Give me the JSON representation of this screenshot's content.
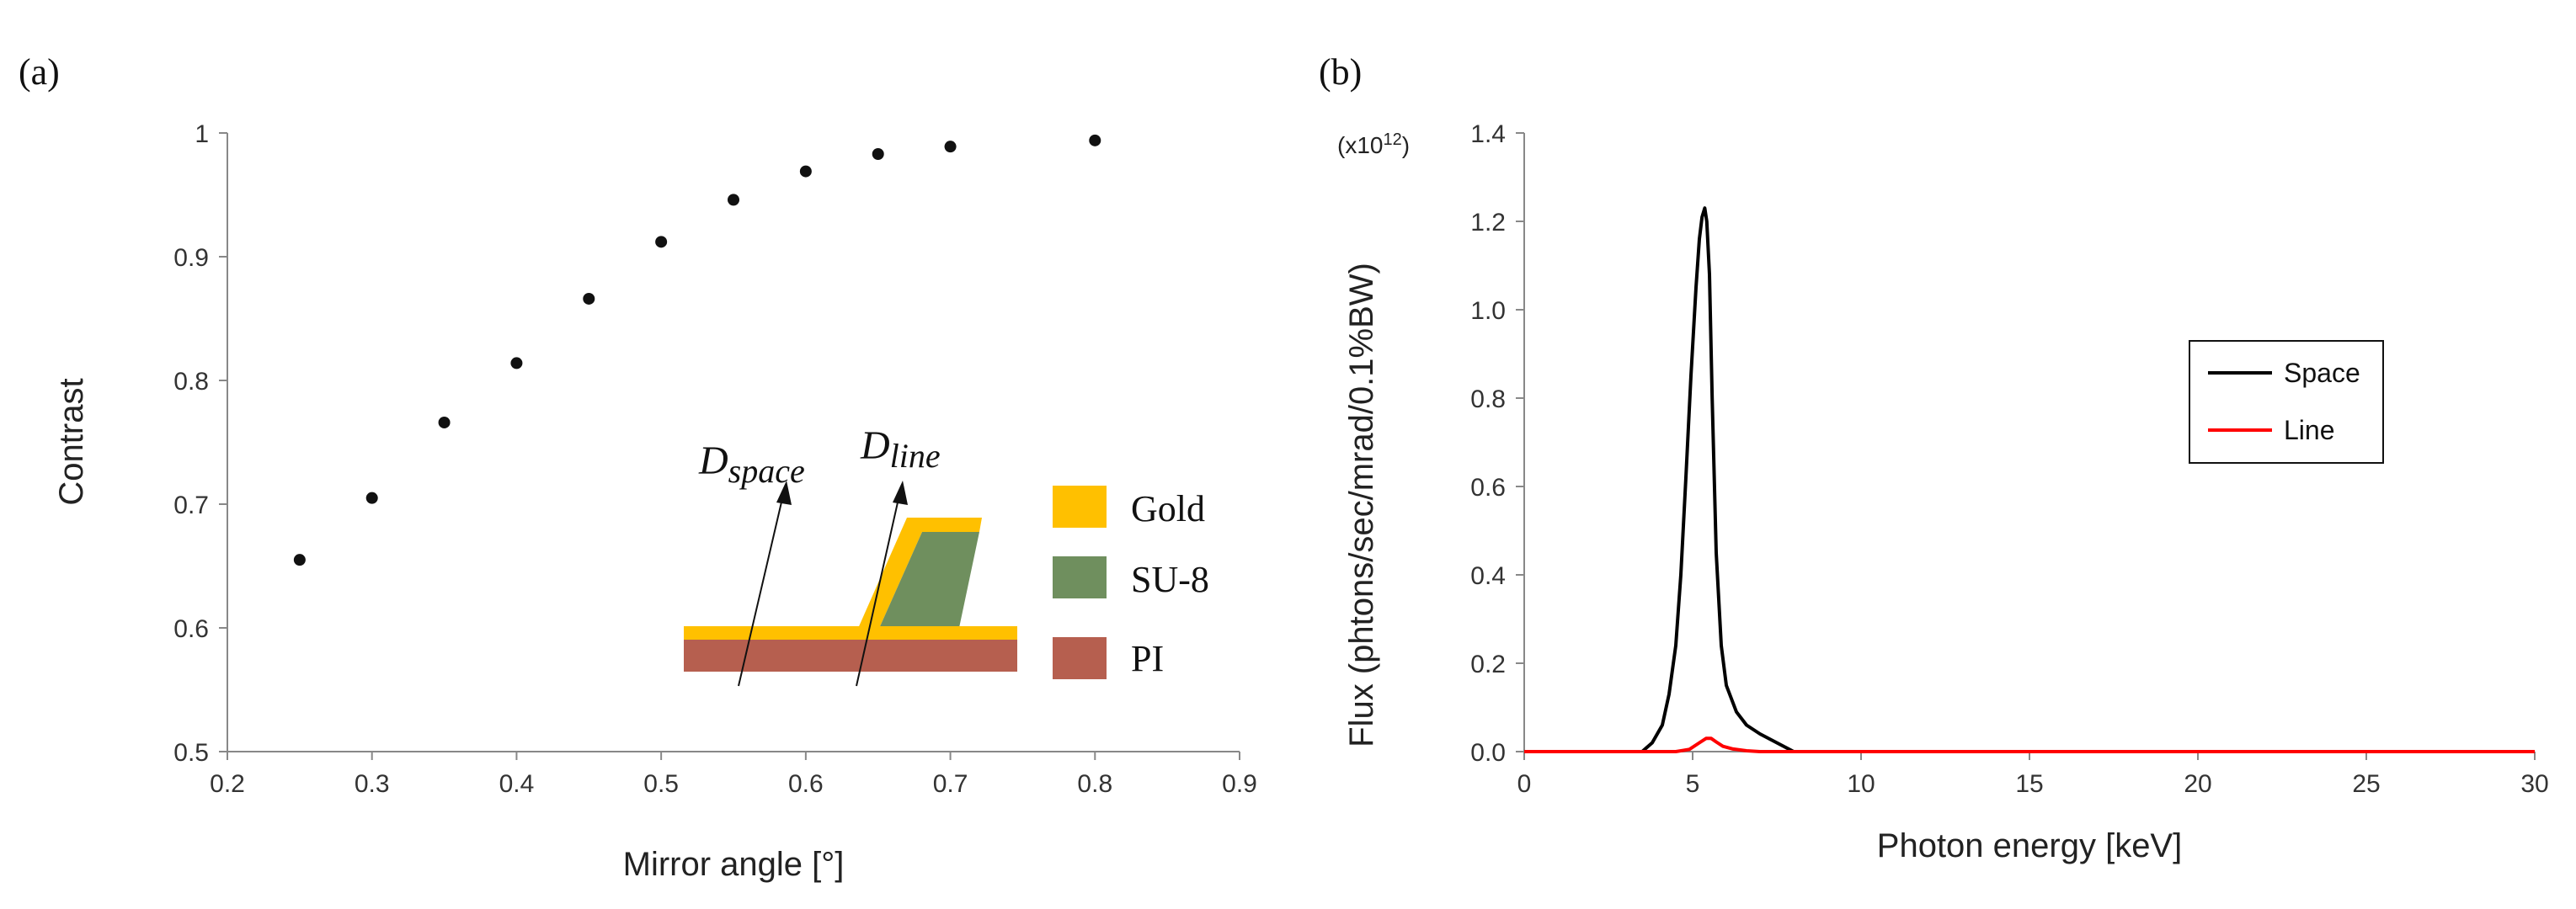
{
  "panels": {
    "a": {
      "label": "(a)"
    },
    "b": {
      "label": "(b)"
    }
  },
  "chart_data": [
    {
      "type": "scatter",
      "panel": "(a)",
      "xlabel": "Mirror angle [°]",
      "ylabel": "Contrast",
      "xlim": [
        0.2,
        0.9
      ],
      "ylim": [
        0.5,
        1.0
      ],
      "xticks": [
        "0.2",
        "0.3",
        "0.4",
        "0.5",
        "0.6",
        "0.7",
        "0.8",
        "0.9"
      ],
      "yticks": [
        "0.5",
        "0.6",
        "0.7",
        "0.8",
        "0.9",
        "1"
      ],
      "grid": false,
      "color": "#111111",
      "x": [
        0.25,
        0.3,
        0.35,
        0.4,
        0.45,
        0.5,
        0.55,
        0.6,
        0.65,
        0.7,
        0.8
      ],
      "y": [
        0.655,
        0.705,
        0.766,
        0.814,
        0.866,
        0.912,
        0.946,
        0.969,
        0.983,
        0.989,
        0.994
      ],
      "inset": {
        "labels": {
          "space": "D",
          "space_sub": "space",
          "line": "D",
          "line_sub": "line"
        },
        "legend": [
          {
            "name": "Gold",
            "color": "#ffc000"
          },
          {
            "name": "SU-8",
            "color": "#6f8f5e"
          },
          {
            "name": "PI",
            "color": "#b65f4f"
          }
        ]
      }
    },
    {
      "type": "line",
      "panel": "(b)",
      "xlabel": "Photon energy [keV]",
      "ylabel": "Flux (phtons/sec/mrad/0.1%BW)",
      "y_multiplier": {
        "base": "(x10",
        "exp": "12",
        "close": ")"
      },
      "xlim": [
        0,
        30
      ],
      "ylim": [
        0,
        1.4
      ],
      "xticks": [
        "0",
        "5",
        "10",
        "15",
        "20",
        "25",
        "30"
      ],
      "yticks": [
        "0.0",
        "0.2",
        "0.4",
        "0.6",
        "0.8",
        "1.0",
        "1.2",
        "1.4"
      ],
      "grid": false,
      "legend_position": "right",
      "series": [
        {
          "name": "Space",
          "color": "#000000",
          "x": [
            3.5,
            3.8,
            4.1,
            4.3,
            4.5,
            4.65,
            4.8,
            4.95,
            5.1,
            5.2,
            5.28,
            5.36,
            5.42,
            5.5,
            5.58,
            5.7,
            5.85,
            6.0,
            6.3,
            6.6,
            7.0,
            7.5,
            8.0
          ],
          "y": [
            0.0,
            0.02,
            0.06,
            0.13,
            0.24,
            0.4,
            0.62,
            0.85,
            1.05,
            1.16,
            1.21,
            1.23,
            1.2,
            1.08,
            0.8,
            0.45,
            0.24,
            0.15,
            0.09,
            0.06,
            0.04,
            0.02,
            0.0
          ]
        },
        {
          "name": "Line",
          "color": "#ff0000",
          "x": [
            0,
            4.5,
            4.9,
            5.2,
            5.4,
            5.55,
            5.7,
            5.9,
            6.2,
            6.6,
            7.0,
            30
          ],
          "y": [
            0.0,
            0.0,
            0.005,
            0.02,
            0.03,
            0.03,
            0.022,
            0.012,
            0.006,
            0.002,
            0.0,
            0.0
          ]
        }
      ]
    }
  ]
}
